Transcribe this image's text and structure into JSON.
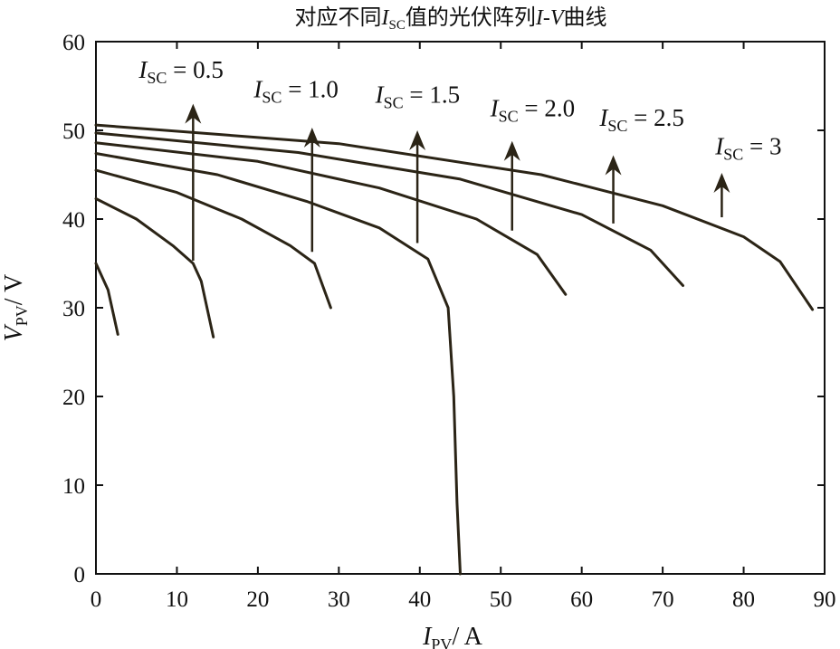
{
  "chart_data": {
    "type": "line",
    "title": {
      "prefix": "对应不同",
      "var": "I",
      "sub": "SC",
      "middle": "值的光伏阵列",
      "var2": "I-V",
      "suffix": "曲线"
    },
    "xlabel": {
      "var": "I",
      "sub": "PV",
      "unit": "/ A"
    },
    "ylabel": {
      "var": "V",
      "sub": "PV",
      "unit": "/ V"
    },
    "xlim": [
      0,
      90
    ],
    "ylim": [
      0,
      60
    ],
    "x_ticks": [
      "0",
      "10",
      "20",
      "30",
      "40",
      "50",
      "60",
      "70",
      "80",
      "90"
    ],
    "y_ticks": [
      "0",
      "10",
      "20",
      "30",
      "40",
      "50",
      "60"
    ],
    "x_tick_values": [
      0,
      10,
      20,
      30,
      40,
      50,
      60,
      70,
      80,
      90
    ],
    "y_tick_values": [
      0,
      10,
      20,
      30,
      40,
      50,
      60
    ],
    "grid": false,
    "line_color": "#2b2416",
    "series": [
      {
        "x": [
          0,
          1.5,
          2.7
        ],
        "y": [
          35,
          32,
          27
        ]
      },
      {
        "x": [
          0,
          5,
          9.5,
          12,
          13,
          14.5
        ],
        "y": [
          42.3,
          40,
          37,
          35,
          33,
          26.7
        ]
      },
      {
        "x": [
          0,
          10,
          18,
          24,
          27,
          29
        ],
        "y": [
          45.5,
          43,
          40,
          37,
          35,
          30
        ]
      },
      {
        "x": [
          0,
          15,
          26,
          35,
          41,
          43.5,
          44.2,
          44.6,
          45
        ],
        "y": [
          47.4,
          45,
          42,
          39,
          35.5,
          30,
          20,
          8,
          0
        ]
      },
      {
        "x": [
          0,
          20,
          35,
          47,
          54.5,
          58
        ],
        "y": [
          48.6,
          46.5,
          43.5,
          40,
          36,
          31.5
        ]
      },
      {
        "x": [
          0,
          25,
          45,
          60,
          68.5,
          72.5
        ],
        "y": [
          49.7,
          47.5,
          44.5,
          40.5,
          36.5,
          32.5
        ]
      },
      {
        "x": [
          0,
          30,
          55,
          70,
          80,
          84.5,
          88.5
        ],
        "y": [
          50.6,
          48.5,
          45,
          41.5,
          38,
          35.2,
          29.8
        ]
      }
    ],
    "annotations": [
      {
        "label_var": "I",
        "label_sub": "SC",
        "label_value": "= 0.5",
        "arrow_x": 12,
        "arrow_y0": 35.3,
        "arrow_y1": 53,
        "label_x": 5.3,
        "label_y": 55.9
      },
      {
        "label_var": "I",
        "label_sub": "SC",
        "label_value": "= 1.0",
        "arrow_x": 26.7,
        "arrow_y0": 36.3,
        "arrow_y1": 50.3,
        "label_x": 19.5,
        "label_y": 53.7
      },
      {
        "label_var": "I",
        "label_sub": "SC",
        "label_value": "= 1.5",
        "arrow_x": 39.7,
        "arrow_y0": 37.3,
        "arrow_y1": 50,
        "label_x": 34.5,
        "label_y": 53.1
      },
      {
        "label_var": "I",
        "label_sub": "SC",
        "label_value": "= 2.0",
        "arrow_x": 51.4,
        "arrow_y0": 38.7,
        "arrow_y1": 48.8,
        "label_x": 48.7,
        "label_y": 51.6
      },
      {
        "label_var": "I",
        "label_sub": "SC",
        "label_value": "= 2.5",
        "arrow_x": 63.9,
        "arrow_y0": 39.5,
        "arrow_y1": 47.2,
        "label_x": 62.2,
        "label_y": 50.5
      },
      {
        "label_var": "I",
        "label_sub": "SC",
        "label_value": "= 3",
        "arrow_x": 77.3,
        "arrow_y0": 40.2,
        "arrow_y1": 45.2,
        "label_x": 76.5,
        "label_y": 47.3
      }
    ]
  }
}
